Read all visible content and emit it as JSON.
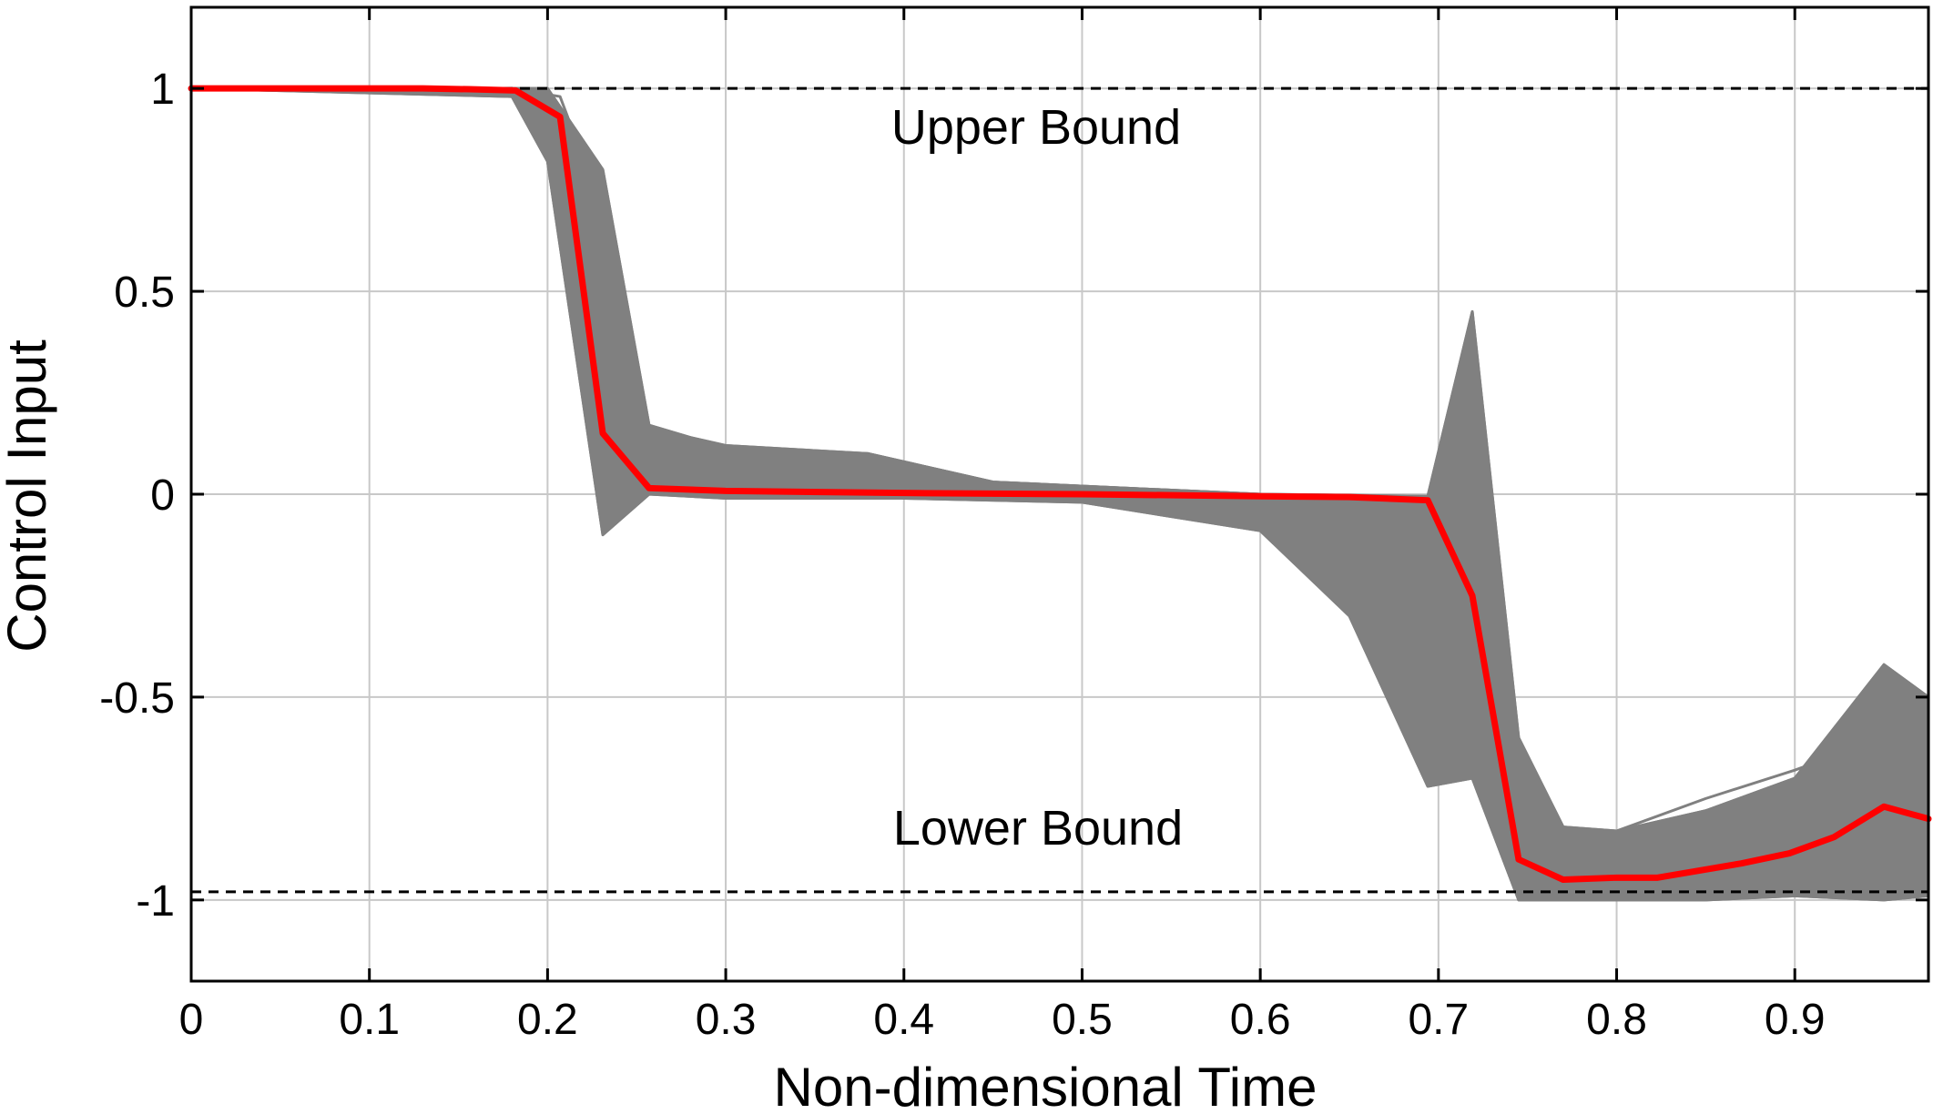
{
  "chart_data": {
    "type": "line",
    "title": "",
    "xlabel": "Non-dimensional Time",
    "ylabel": "Control Input",
    "xlim": [
      0,
      0.975
    ],
    "ylim": [
      -1.2,
      1.2
    ],
    "grid": true,
    "x_ticks": [
      0,
      0.1,
      0.2,
      0.3,
      0.4,
      0.5,
      0.6,
      0.7,
      0.8,
      0.9
    ],
    "x_tick_labels": [
      "0",
      "0.1",
      "0.2",
      "0.3",
      "0.4",
      "0.5",
      "0.6",
      "0.7",
      "0.8",
      "0.9"
    ],
    "y_ticks": [
      1,
      0.5,
      0,
      -0.5,
      -1
    ],
    "y_tick_labels": [
      "1",
      "0.5",
      "0",
      "-0.5",
      "-1"
    ],
    "colors": {
      "nominal": "#ff0000",
      "ensemble": "#808080",
      "bounds": "#000000",
      "grid": "#c8c8c8"
    },
    "bounds": [
      {
        "label": "Upper Bound",
        "y": 1.0
      },
      {
        "label": "Lower Bound",
        "y": -0.98
      }
    ],
    "series": [
      {
        "role": "nominal",
        "x": [
          0,
          0.026,
          0.052,
          0.078,
          0.104,
          0.13,
          0.156,
          0.182,
          0.207,
          0.231,
          0.257,
          0.3,
          0.4,
          0.5,
          0.6,
          0.65,
          0.694,
          0.719,
          0.745,
          0.77,
          0.8,
          0.823,
          0.87,
          0.897,
          0.922,
          0.95,
          0.975
        ],
        "values": [
          1.0,
          1.0,
          1.0,
          1.0,
          1.0,
          1.0,
          0.998,
          0.995,
          0.93,
          0.15,
          0.015,
          0.008,
          0.003,
          0.0,
          -0.005,
          -0.007,
          -0.015,
          -0.25,
          -0.9,
          -0.95,
          -0.945,
          -0.945,
          -0.91,
          -0.885,
          -0.845,
          -0.77,
          -0.8
        ]
      },
      {
        "role": "ensemble-envelope-upper",
        "x": [
          0,
          0.18,
          0.2,
          0.231,
          0.257,
          0.28,
          0.3,
          0.38,
          0.45,
          0.6,
          0.694,
          0.719,
          0.745,
          0.77,
          0.8,
          0.85,
          0.9,
          0.95,
          0.975
        ],
        "values": [
          1.0,
          1.0,
          1.0,
          0.8,
          0.17,
          0.14,
          0.12,
          0.1,
          0.03,
          0.0,
          -0.005,
          0.45,
          -0.6,
          -0.82,
          -0.83,
          -0.78,
          -0.7,
          -0.42,
          -0.5
        ]
      },
      {
        "role": "ensemble-envelope-lower",
        "x": [
          0,
          0.18,
          0.2,
          0.231,
          0.257,
          0.3,
          0.4,
          0.5,
          0.6,
          0.65,
          0.694,
          0.719,
          0.745,
          0.77,
          0.8,
          0.85,
          0.9,
          0.95,
          0.975
        ],
        "values": [
          1.0,
          0.98,
          0.82,
          -0.1,
          0.0,
          -0.01,
          -0.01,
          -0.02,
          -0.09,
          -0.3,
          -0.72,
          -0.7,
          -1.0,
          -1.0,
          -1.0,
          -1.0,
          -0.99,
          -1.0,
          -0.99
        ]
      },
      {
        "role": "ensemble-sample",
        "x": [
          0,
          0.18,
          0.207,
          0.231,
          0.257,
          0.3,
          0.4,
          0.5,
          0.6,
          0.65,
          0.694,
          0.719,
          0.745,
          0.77,
          0.8,
          0.85,
          0.9,
          0.95,
          0.975
        ],
        "values": [
          1.0,
          0.99,
          0.85,
          0.25,
          0.02,
          0.05,
          0.02,
          0.0,
          -0.03,
          -0.25,
          -0.7,
          -0.6,
          -0.95,
          -0.85,
          -0.83,
          -0.75,
          -0.68,
          -0.6,
          -0.65
        ]
      },
      {
        "role": "ensemble-sample",
        "x": [
          0,
          0.18,
          0.207,
          0.231,
          0.257,
          0.28,
          0.3,
          0.38,
          0.45,
          0.6,
          0.694,
          0.719,
          0.745,
          0.77,
          0.8,
          0.85,
          0.9,
          0.95,
          0.975
        ],
        "values": [
          1.0,
          1.0,
          0.98,
          0.7,
          0.15,
          0.14,
          0.1,
          0.1,
          0.03,
          0.0,
          -0.02,
          0.3,
          -0.7,
          -0.85,
          -0.85,
          -0.78,
          -0.72,
          -0.7,
          -0.6
        ]
      },
      {
        "role": "ensemble-sample",
        "x": [
          0,
          0.18,
          0.207,
          0.231,
          0.257,
          0.3,
          0.4,
          0.5,
          0.6,
          0.65,
          0.694,
          0.719,
          0.745,
          0.77,
          0.8,
          0.85,
          0.9,
          0.95,
          0.975
        ],
        "values": [
          1.0,
          0.99,
          0.95,
          0.5,
          0.08,
          0.04,
          0.01,
          -0.01,
          -0.06,
          -0.2,
          -0.6,
          -0.5,
          -0.92,
          -0.9,
          -0.88,
          -0.8,
          -0.75,
          -0.5,
          -0.6
        ]
      }
    ]
  }
}
